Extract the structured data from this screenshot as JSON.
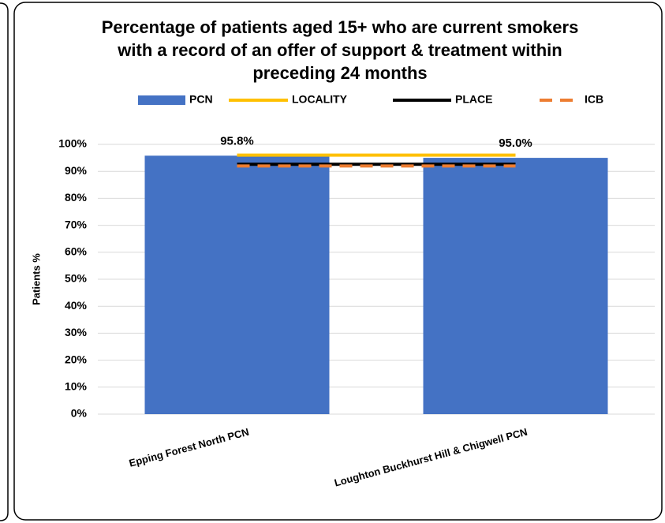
{
  "chart_data": {
    "type": "bar",
    "title": "Percentage of patients aged 15+ who are current smokers with a record of an offer of support & treatment within preceding 24 months",
    "ylabel": "Patients %",
    "categories": [
      "Epping Forest North PCN",
      "Loughton Buckhurst Hill & Chigwell PCN"
    ],
    "series": [
      {
        "name": "PCN",
        "type": "bar",
        "color": "#4472c4",
        "values": [
          95.8,
          95.0
        ],
        "value_labels": [
          "95.8%",
          "95.0%"
        ]
      },
      {
        "name": "LOCALITY",
        "type": "line",
        "color": "#ffc000",
        "values": [
          96.0,
          96.0
        ]
      },
      {
        "name": "PLACE",
        "type": "line",
        "color": "#000000",
        "values": [
          92.6,
          92.6
        ]
      },
      {
        "name": "ICB",
        "type": "line",
        "color": "#ed7d31",
        "dashed": true,
        "values": [
          92.0,
          92.0
        ]
      }
    ],
    "ylim": [
      0,
      100
    ],
    "yticks": [
      {
        "value": 0,
        "label": "0%"
      },
      {
        "value": 10,
        "label": "10%"
      },
      {
        "value": 20,
        "label": "20%"
      },
      {
        "value": 30,
        "label": "30%"
      },
      {
        "value": 40,
        "label": "40%"
      },
      {
        "value": 50,
        "label": "50%"
      },
      {
        "value": 60,
        "label": "60%"
      },
      {
        "value": 70,
        "label": "70%"
      },
      {
        "value": 80,
        "label": "80%"
      },
      {
        "value": 90,
        "label": "90%"
      },
      {
        "value": 100,
        "label": "100%"
      }
    ],
    "grid": true,
    "legend": "top"
  }
}
